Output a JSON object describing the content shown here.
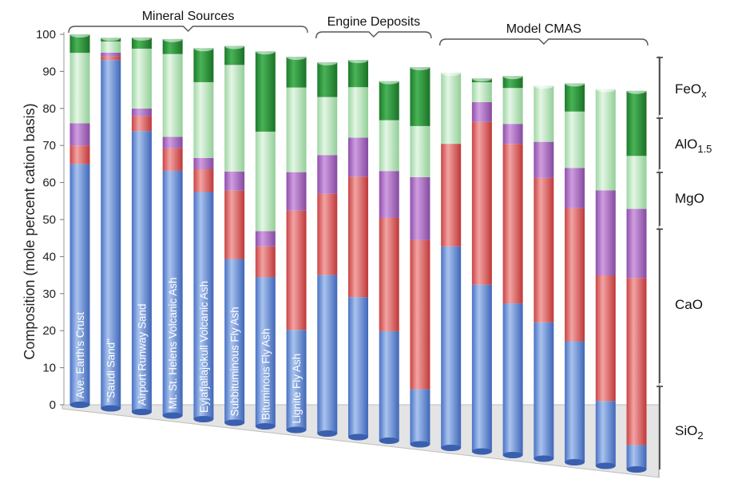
{
  "chart_data": {
    "type": "bar",
    "stacked": true,
    "ylabel": "Composition (mole percent cation basis)",
    "ylim": [
      0,
      100
    ],
    "yticks": [
      0,
      10,
      20,
      30,
      40,
      50,
      60,
      70,
      80,
      90,
      100
    ],
    "groups": [
      {
        "label": "Mineral Sources",
        "bars": [
          0,
          7
        ]
      },
      {
        "label": "Engine Deposits",
        "bars": [
          8,
          11
        ]
      },
      {
        "label": "Model CMAS",
        "bars": [
          12,
          18
        ]
      }
    ],
    "categories": [
      "Ave. Earth's Crust",
      "\"Saudi Sand\"",
      "Airport Runway Sand",
      "Mt. St. Helens Volcanic Ash",
      "Eyjafjallajokull Volcanic Ash",
      "Subbituminous Fly  Ash",
      "Bituminous Fly  Ash",
      "Lignite Fly  Ash",
      "",
      "",
      "",
      "",
      "",
      "",
      "",
      "",
      "",
      "",
      ""
    ],
    "series": [
      {
        "name": "SiO2",
        "color": "#7b9fd8",
        "values": [
          65,
          93.5,
          75,
          65,
          60,
          43,
          39,
          26,
          41,
          36,
          28,
          14,
          51,
          42,
          38,
          34,
          30,
          16,
          6
        ]
      },
      {
        "name": "CaO",
        "color": "#e07474",
        "values": [
          5,
          1,
          4,
          6,
          6,
          18,
          8,
          31,
          21,
          31,
          29,
          38,
          26,
          41,
          40,
          36,
          33,
          31,
          41
        ]
      },
      {
        "name": "MgO",
        "color": "#b176c7",
        "values": [
          6,
          1,
          2,
          3,
          3,
          5,
          4,
          10,
          10,
          10,
          12,
          16,
          0,
          5,
          5,
          9,
          10,
          21,
          17
        ]
      },
      {
        "name": "AlO1.5",
        "color": "#bfe8c2",
        "values": [
          19,
          3,
          16,
          22,
          20,
          28,
          26,
          22,
          15,
          13,
          13,
          13,
          18,
          5,
          9,
          14,
          14,
          25,
          13
        ]
      },
      {
        "name": "FeOx",
        "color": "#2f9a3e",
        "values": [
          5,
          1,
          3,
          4,
          9,
          5,
          21,
          8,
          9,
          7,
          10,
          15,
          0,
          1,
          3,
          0,
          7,
          0,
          16
        ]
      }
    ],
    "legend": [
      {
        "text": "FeO",
        "sub": "x"
      },
      {
        "text": "AlO",
        "sub": "1.5"
      },
      {
        "text": "MgO",
        "sub": ""
      },
      {
        "text": "CaO",
        "sub": ""
      },
      {
        "text": "SiO",
        "sub": "2"
      }
    ],
    "legend_position": "right"
  }
}
